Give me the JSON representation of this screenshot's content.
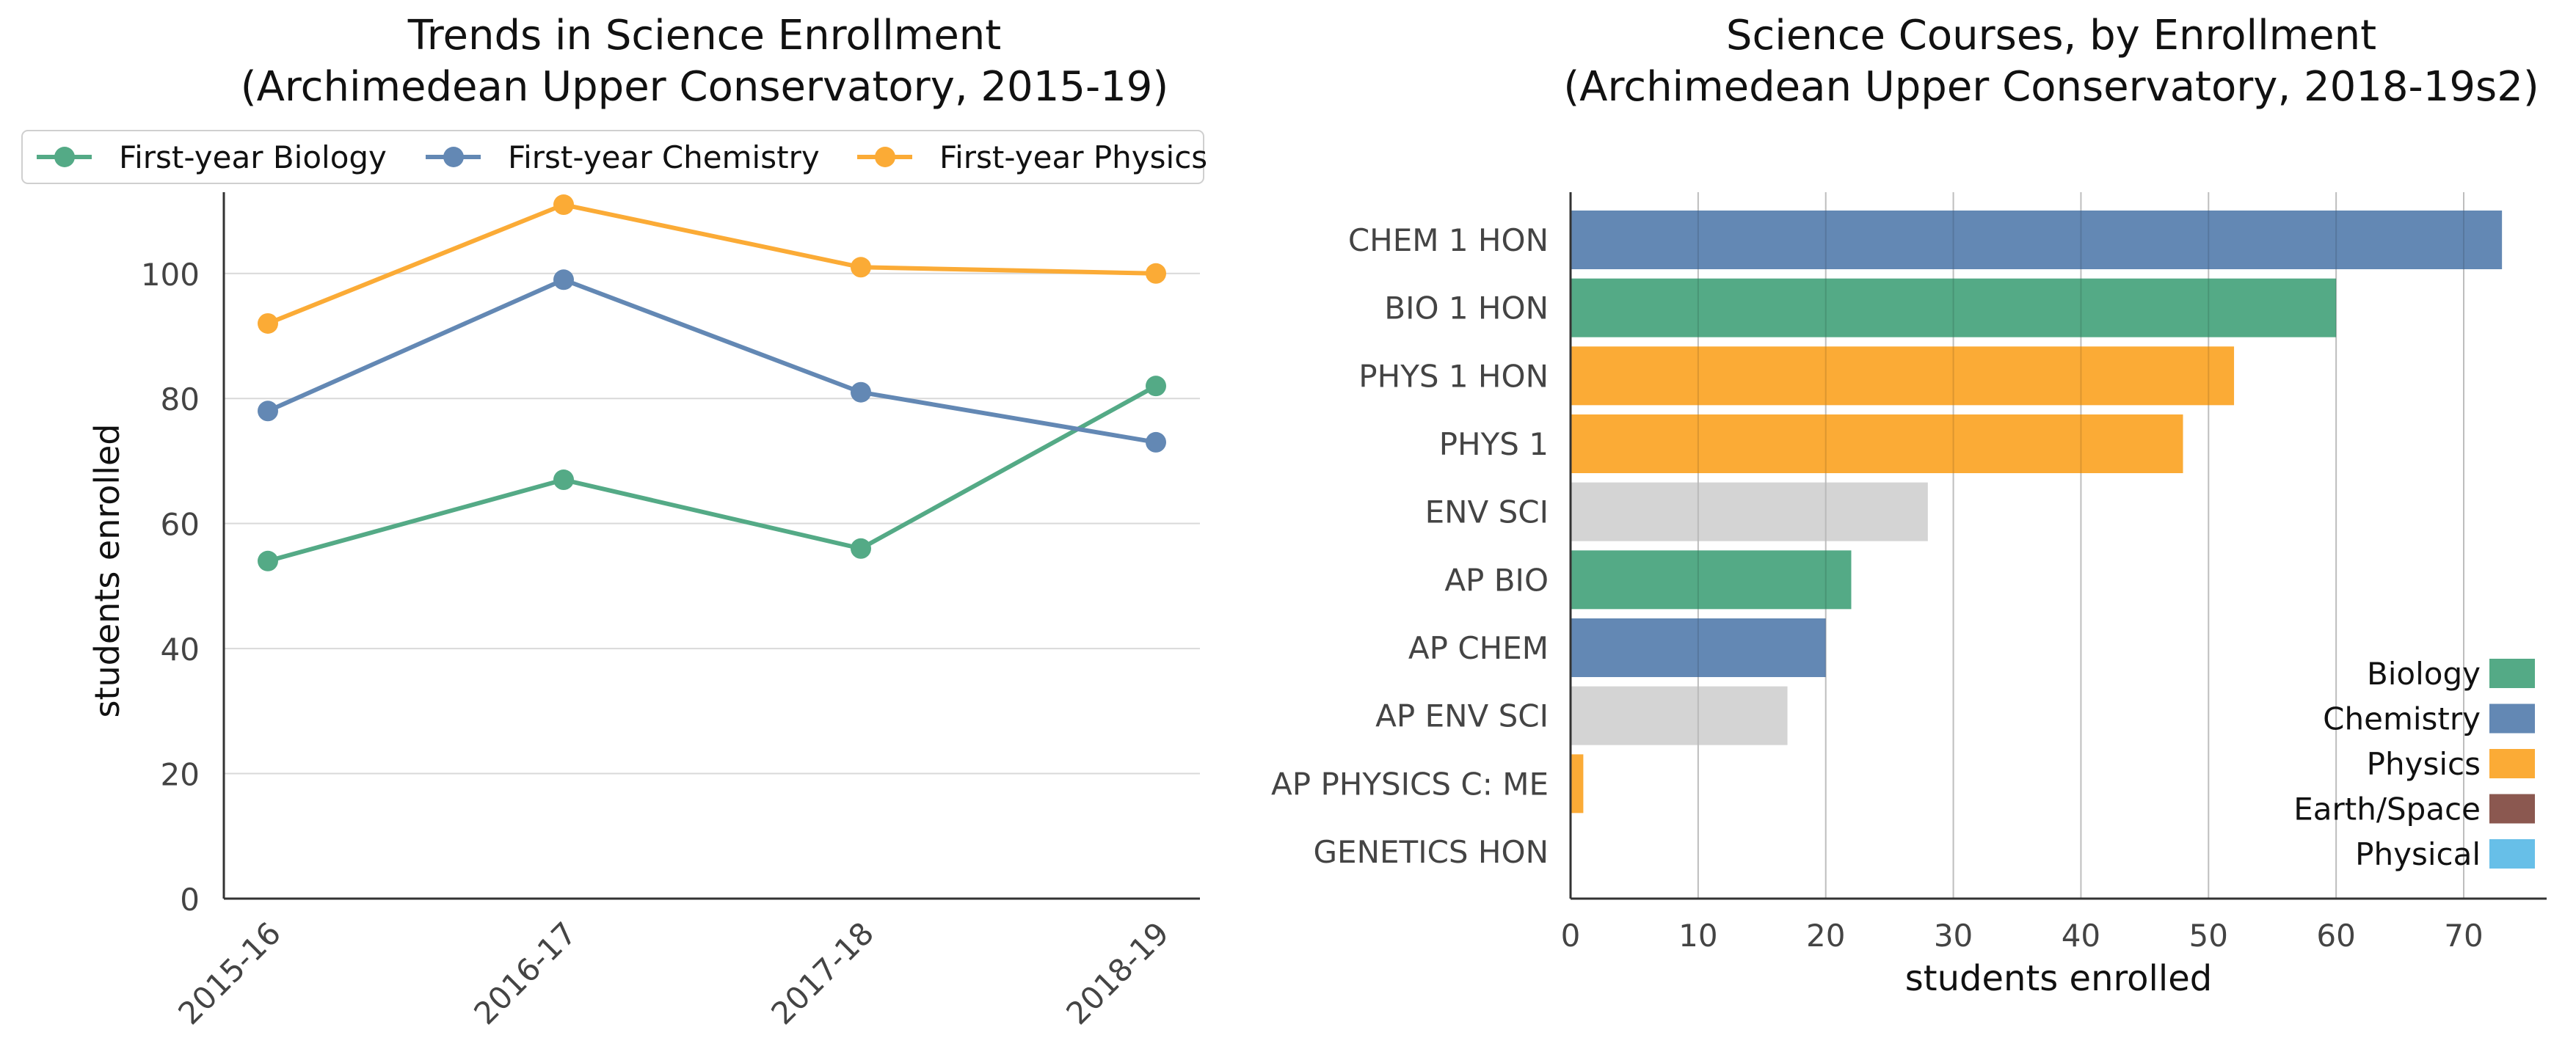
{
  "chart_data": [
    {
      "type": "line",
      "title": "Trends in Science Enrollment",
      "subtitle": "(Archimedean Upper Conservatory, 2015-19)",
      "xlabel": "",
      "ylabel": "students enrolled",
      "x": [
        "2015-16",
        "2016-17",
        "2017-18",
        "2018-19"
      ],
      "ylim": [
        0,
        113
      ],
      "yticks": [
        "0",
        "20",
        "40",
        "60",
        "80",
        "100"
      ],
      "grid": "horizontal",
      "legend": "top",
      "series": [
        {
          "name": "First-year Biology",
          "color": "#54aa86",
          "values": [
            54,
            67,
            56,
            82
          ]
        },
        {
          "name": "First-year Chemistry",
          "color": "#6388b4",
          "values": [
            78,
            99,
            81,
            73
          ]
        },
        {
          "name": "First-year Physics",
          "color": "#fbab36",
          "values": [
            92,
            111,
            101,
            100
          ]
        }
      ]
    },
    {
      "type": "bar",
      "orientation": "horizontal",
      "title": "Science Courses, by Enrollment",
      "subtitle": "(Archimedean Upper Conservatory, 2018-19s2)",
      "xlabel": "students enrolled",
      "ylabel": "",
      "xlim": [
        0,
        76.5
      ],
      "xticks": [
        "0",
        "10",
        "20",
        "30",
        "40",
        "50",
        "60",
        "70"
      ],
      "grid": "vertical",
      "legend": "bottom-right",
      "categories": [
        "CHEM 1 HON",
        "BIO 1 HON",
        "PHYS 1 HON",
        "PHYS 1",
        "ENV SCI",
        "AP BIO",
        "AP CHEM",
        "AP ENV SCI",
        "AP PHYSICS C: ME",
        "GENETICS HON"
      ],
      "values": [
        73,
        60,
        52,
        48,
        28,
        22,
        20,
        17,
        1,
        0
      ],
      "bar_colors": [
        "#6388b4",
        "#54aa86",
        "#fbab36",
        "#fbab36",
        "#d4d4d4",
        "#54aa86",
        "#6388b4",
        "#d4d4d4",
        "#fbab36",
        "#d4d4d4"
      ],
      "legend_entries": [
        {
          "name": "Biology",
          "color": "#54aa86"
        },
        {
          "name": "Chemistry",
          "color": "#6388b4"
        },
        {
          "name": "Physics",
          "color": "#fbab36"
        },
        {
          "name": "Earth/Space",
          "color": "#8b5850"
        },
        {
          "name": "Physical",
          "color": "#67bfe8"
        }
      ]
    }
  ]
}
